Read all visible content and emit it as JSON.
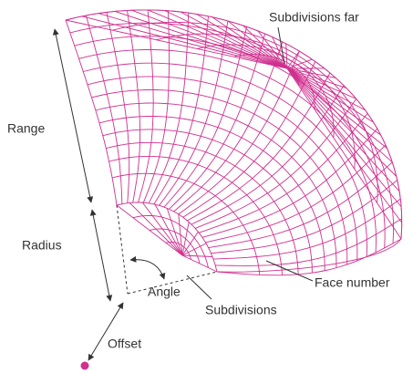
{
  "labels": {
    "subdivisions_far": "Subdivisions far",
    "range": "Range",
    "radius": "Radius",
    "angle": "Angle",
    "subdivisions": "Subdivisions",
    "face_number": "Face number",
    "offset": "Offset"
  }
}
